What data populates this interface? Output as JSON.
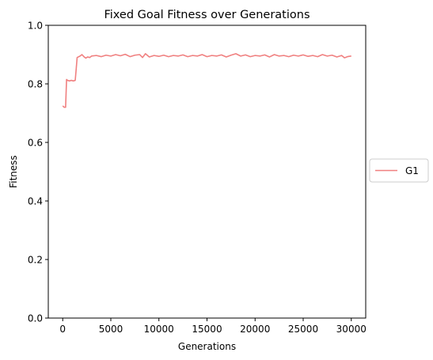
{
  "chart_data": {
    "type": "line",
    "title": "Fixed Goal Fitness over Generations",
    "xlabel": "Generations",
    "ylabel": "Fitness",
    "xlim": [
      -1500,
      31500
    ],
    "ylim": [
      0.0,
      1.0
    ],
    "xticks": [
      0,
      5000,
      10000,
      15000,
      20000,
      25000,
      30000
    ],
    "xtick_labels": [
      "0",
      "5000",
      "10000",
      "15000",
      "20000",
      "25000",
      "30000"
    ],
    "yticks": [
      0.0,
      0.2,
      0.4,
      0.6,
      0.8,
      1.0
    ],
    "ytick_labels": [
      "0.0",
      "0.2",
      "0.4",
      "0.6",
      "0.8",
      "1.0"
    ],
    "grid": false,
    "legend_position": "outside-right",
    "series": [
      {
        "name": "G1",
        "color": "#f08080",
        "x": [
          0,
          150,
          300,
          400,
          500,
          700,
          900,
          1100,
          1300,
          1400,
          1500,
          1800,
          2000,
          2200,
          2400,
          2600,
          2800,
          3000,
          3500,
          4000,
          4500,
          5000,
          5500,
          6000,
          6500,
          7000,
          7500,
          8000,
          8300,
          8600,
          9000,
          9500,
          10000,
          10500,
          11000,
          11500,
          12000,
          12500,
          13000,
          13500,
          14000,
          14500,
          15000,
          15500,
          16000,
          16500,
          17000,
          17500,
          18000,
          18500,
          19000,
          19500,
          20000,
          20500,
          21000,
          21500,
          22000,
          22500,
          23000,
          23500,
          24000,
          24500,
          25000,
          25500,
          26000,
          26500,
          27000,
          27500,
          28000,
          28500,
          29000,
          29300,
          29600,
          30000
        ],
        "y": [
          0.725,
          0.72,
          0.72,
          0.815,
          0.812,
          0.81,
          0.812,
          0.81,
          0.812,
          0.85,
          0.89,
          0.895,
          0.9,
          0.893,
          0.888,
          0.892,
          0.89,
          0.895,
          0.897,
          0.893,
          0.898,
          0.895,
          0.9,
          0.896,
          0.901,
          0.893,
          0.898,
          0.9,
          0.89,
          0.903,
          0.892,
          0.897,
          0.894,
          0.898,
          0.893,
          0.897,
          0.895,
          0.899,
          0.893,
          0.897,
          0.895,
          0.9,
          0.893,
          0.897,
          0.895,
          0.899,
          0.892,
          0.898,
          0.903,
          0.895,
          0.899,
          0.893,
          0.897,
          0.895,
          0.899,
          0.892,
          0.9,
          0.895,
          0.897,
          0.893,
          0.898,
          0.895,
          0.899,
          0.894,
          0.897,
          0.893,
          0.9,
          0.895,
          0.898,
          0.892,
          0.897,
          0.889,
          0.893,
          0.895
        ]
      }
    ]
  }
}
